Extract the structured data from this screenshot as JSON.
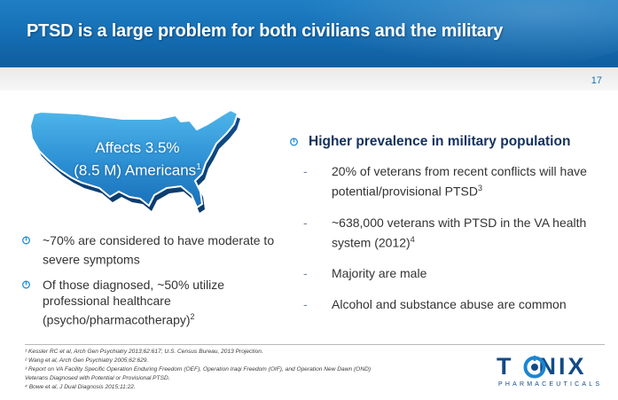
{
  "header": {
    "title": "PTSD is a large problem for both civilians and the military"
  },
  "page_number": "17",
  "map": {
    "line1": "Affects 3.5%",
    "line2": "(8.5 M) Americans",
    "line2_ref": "1"
  },
  "left_bullets": [
    {
      "text": "~70% are considered to have moderate to severe symptoms",
      "ref": ""
    },
    {
      "text": "Of those diagnosed, ~50% utilize professional healthcare (psycho/pharmacotherapy)",
      "ref": "2"
    }
  ],
  "right": {
    "main_point": "Higher prevalence in military population",
    "subs": [
      {
        "text": "20% of veterans from recent conflicts will have potential/provisional PTSD",
        "ref": "3"
      },
      {
        "text": "~638,000 veterans with PTSD in the VA health system (2012)",
        "ref": "4"
      },
      {
        "text": "Majority are male",
        "ref": ""
      },
      {
        "text": "Alcohol and substance abuse are common",
        "ref": ""
      }
    ]
  },
  "footnotes": [
    "¹ Kessler RC et al, Arch Gen Psychiatry 2013;62:617; U.S. Census Bureau, 2013 Projection.",
    "² Wang et al, Arch Gen Psychiatry 2005;62:629.",
    "³ Report on VA Facility Specific Operation Enduring Freedom (OEF), Operation Iraqi Freedom (OIF), and Operation New Dawn (OND)",
    "Veterans Diagnosed with Potential or Provisional PTSD.",
    "⁴ Bowe et al, J Dual Diagnosis 2015;11:22."
  ],
  "logo": {
    "left": "T",
    "right": "NIX",
    "tagline": "PHARMACEUTICALS"
  },
  "colors": {
    "header_blue": "#1670b6",
    "title_navy": "#14315e",
    "logo_navy": "#124a86",
    "bullet_blue": "#1f8ed8"
  },
  "icons": {
    "bullet": "bulb-bullet-icon",
    "map": "usa-map-icon",
    "logo_o": "compass-o-icon"
  }
}
